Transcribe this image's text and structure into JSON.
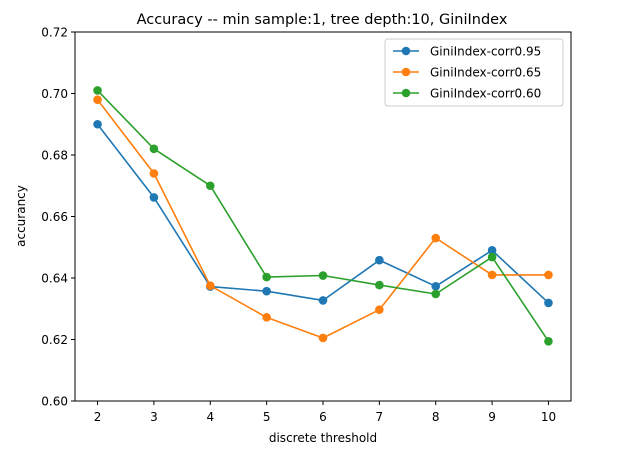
{
  "chart_data": {
    "type": "line",
    "title": "Accuracy -- min sample:1, tree depth:10, GiniIndex",
    "xlabel": "discrete threshold",
    "ylabel": "accurancy",
    "x": [
      2,
      3,
      4,
      5,
      6,
      7,
      8,
      9,
      10
    ],
    "x_ticks": [
      "2",
      "3",
      "4",
      "5",
      "6",
      "7",
      "8",
      "9",
      "10"
    ],
    "xlim": [
      1.6,
      10.4
    ],
    "ylim": [
      0.6,
      0.72
    ],
    "y_ticks": [
      "0.60",
      "0.62",
      "0.64",
      "0.66",
      "0.68",
      "0.70",
      "0.72"
    ],
    "grid": false,
    "legend_position": "top-right",
    "series": [
      {
        "name": "GiniIndex-corr0.95",
        "color": "#1f77b4",
        "values": [
          0.69,
          0.6662,
          0.6372,
          0.6357,
          0.6327,
          0.6458,
          0.6373,
          0.649,
          0.6319
        ]
      },
      {
        "name": "GiniIndex-corr0.65",
        "color": "#ff7f0e",
        "values": [
          0.698,
          0.674,
          0.6375,
          0.6272,
          0.6205,
          0.6297,
          0.653,
          0.641,
          0.641
        ]
      },
      {
        "name": "GiniIndex-corr0.60",
        "color": "#2ca02c",
        "values": [
          0.701,
          0.682,
          0.67,
          0.6403,
          0.6408,
          0.6377,
          0.6348,
          0.6468,
          0.6194
        ]
      }
    ]
  }
}
